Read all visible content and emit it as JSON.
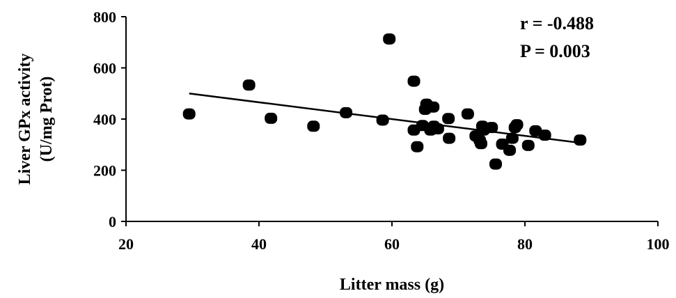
{
  "chart_data": {
    "type": "scatter",
    "title": "",
    "xlabel": "Litter mass (g)",
    "ylabel_line1": "Liver GPx activity",
    "ylabel_line2": "(U/mg Prot)",
    "xlim": [
      20,
      100
    ],
    "ylim": [
      0,
      800
    ],
    "xticks": [
      20,
      40,
      60,
      80,
      100
    ],
    "yticks": [
      0,
      200,
      400,
      600,
      800
    ],
    "xtick_labels": [
      "20",
      "40",
      "60",
      "80",
      "100"
    ],
    "ytick_labels": [
      "0",
      "200",
      "400",
      "600",
      "800"
    ],
    "grid": false,
    "legend": "none",
    "annotations": {
      "r": "r = -0.488",
      "p": "P = 0.003"
    },
    "trendline": {
      "x": [
        29.5,
        88.3
      ],
      "y": [
        500,
        307
      ]
    },
    "series": [
      {
        "color": "#000000",
        "points": [
          {
            "x": 29.5,
            "y": 420
          },
          {
            "x": 38.5,
            "y": 533
          },
          {
            "x": 41.8,
            "y": 403
          },
          {
            "x": 48.2,
            "y": 372
          },
          {
            "x": 53.1,
            "y": 425
          },
          {
            "x": 58.6,
            "y": 396
          },
          {
            "x": 59.6,
            "y": 713
          },
          {
            "x": 63.3,
            "y": 548
          },
          {
            "x": 63.3,
            "y": 357
          },
          {
            "x": 63.8,
            "y": 292
          },
          {
            "x": 64.6,
            "y": 375
          },
          {
            "x": 65.0,
            "y": 438
          },
          {
            "x": 65.2,
            "y": 458
          },
          {
            "x": 65.8,
            "y": 357
          },
          {
            "x": 66.2,
            "y": 447
          },
          {
            "x": 66.3,
            "y": 372
          },
          {
            "x": 66.9,
            "y": 362
          },
          {
            "x": 68.5,
            "y": 402
          },
          {
            "x": 68.6,
            "y": 325
          },
          {
            "x": 71.4,
            "y": 420
          },
          {
            "x": 72.6,
            "y": 334
          },
          {
            "x": 73.2,
            "y": 317
          },
          {
            "x": 73.4,
            "y": 304
          },
          {
            "x": 73.6,
            "y": 372
          },
          {
            "x": 73.8,
            "y": 357
          },
          {
            "x": 75.0,
            "y": 367
          },
          {
            "x": 75.6,
            "y": 224
          },
          {
            "x": 76.6,
            "y": 302
          },
          {
            "x": 77.7,
            "y": 278
          },
          {
            "x": 78.1,
            "y": 325
          },
          {
            "x": 78.5,
            "y": 367
          },
          {
            "x": 78.8,
            "y": 378
          },
          {
            "x": 80.5,
            "y": 297
          },
          {
            "x": 81.6,
            "y": 354
          },
          {
            "x": 83.0,
            "y": 337
          },
          {
            "x": 88.3,
            "y": 318
          }
        ]
      }
    ]
  }
}
